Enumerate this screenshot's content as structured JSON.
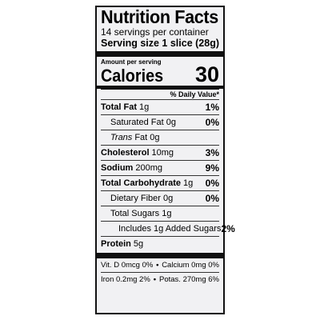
{
  "title": "Nutrition Facts",
  "servings_per_container": "14 servings per container",
  "serving_size_label": "Serving size",
  "serving_size_value": "1 slice (28g)",
  "amount_per_serving": "Amount per serving",
  "calories_label": "Calories",
  "calories_value": "30",
  "daily_value_header": "% Daily Value*",
  "nutrients": {
    "total_fat": {
      "label": "Total Fat",
      "amount": "1g",
      "dv": "1%"
    },
    "saturated_fat": {
      "label": "Saturated Fat 0g",
      "dv": "0%"
    },
    "trans_fat": {
      "label_italic": "Trans",
      "label_rest": "Fat 0g"
    },
    "cholesterol": {
      "label": "Cholesterol",
      "amount": "10mg",
      "dv": "3%"
    },
    "sodium": {
      "label": "Sodium",
      "amount": "200mg",
      "dv": "9%"
    },
    "total_carbohydrate": {
      "label": "Total Carbohydrate",
      "amount": "1g",
      "dv": "0%"
    },
    "dietary_fiber": {
      "label": "Dietary Fiber 0g",
      "dv": "0%"
    },
    "total_sugars": {
      "label": "Total Sugars 1g"
    },
    "added_sugars": {
      "label": "Includes 1g Added Sugars",
      "dv": "2%"
    },
    "protein": {
      "label": "Protein",
      "amount": "5g"
    }
  },
  "vitamins": {
    "vit_d": "Vit. D 0mcg 0%",
    "calcium": "Calcium 0mg 0%",
    "iron": "Iron 0.2mg 2%",
    "potassium": "Potas. 270mg 6%",
    "separator": "•"
  }
}
